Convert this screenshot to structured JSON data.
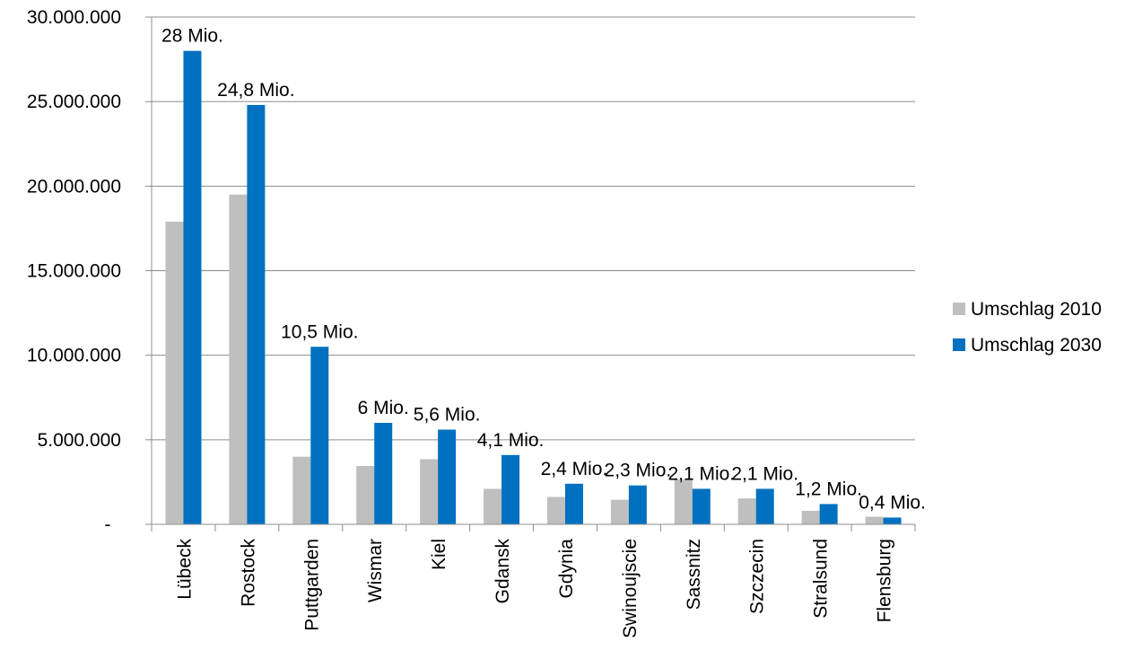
{
  "chart_data": {
    "type": "bar",
    "categories": [
      "Lübeck",
      "Rostock",
      "Puttgarden",
      "Wismar",
      "Kiel",
      "Gdansk",
      "Gdynia",
      "Swinoujscie",
      "Sassnitz",
      "Szczecin",
      "Stralsund",
      "Flensburg"
    ],
    "series": [
      {
        "name": "Umschlag 2010",
        "color": "#bfbfbf",
        "values": [
          17900000,
          19500000,
          4000000,
          3450000,
          3850000,
          2100000,
          1620000,
          1450000,
          2650000,
          1530000,
          800000,
          450000
        ]
      },
      {
        "name": "Umschlag 2030",
        "color": "#0070c0",
        "values": [
          28000000,
          24800000,
          10500000,
          6000000,
          5600000,
          4100000,
          2400000,
          2300000,
          2100000,
          2100000,
          1200000,
          400000
        ]
      }
    ],
    "data_labels_2030": [
      "28 Mio.",
      "24,8 Mio.",
      "10,5 Mio.",
      "6 Mio.",
      "5,6 Mio.",
      "4,1 Mio.",
      "2,4 Mio.",
      "2,3 Mio.",
      "2,1 Mio.",
      "2,1 Mio.",
      "1,2 Mio.",
      "0,4 Mio."
    ],
    "y_ticks": [
      {
        "value": 0,
        "label": "-"
      },
      {
        "value": 5000000,
        "label": "5.000.000"
      },
      {
        "value": 10000000,
        "label": "10.000.000"
      },
      {
        "value": 15000000,
        "label": "15.000.000"
      },
      {
        "value": 20000000,
        "label": "20.000.000"
      },
      {
        "value": 25000000,
        "label": "25.000.000"
      },
      {
        "value": 30000000,
        "label": "30.000.000"
      }
    ],
    "ylim": [
      0,
      30000000
    ],
    "grid": true,
    "legend_position": "right",
    "title": "",
    "xlabel": "",
    "ylabel": ""
  }
}
